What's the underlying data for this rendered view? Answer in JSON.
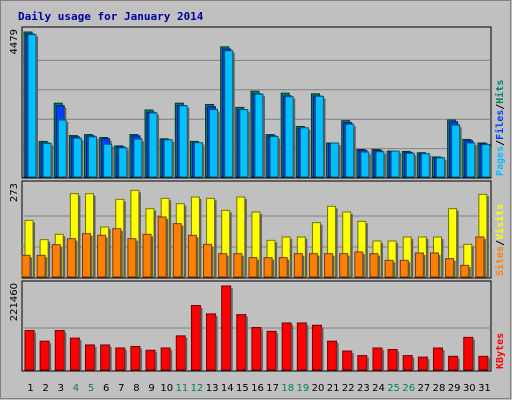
{
  "chart_data": {
    "type": "bar",
    "title": "Daily usage for January 2014",
    "days": [
      "1",
      "2",
      "3",
      "4",
      "5",
      "6",
      "7",
      "8",
      "9",
      "10",
      "11",
      "12",
      "13",
      "14",
      "15",
      "16",
      "17",
      "18",
      "19",
      "20",
      "21",
      "22",
      "23",
      "24",
      "25",
      "26",
      "27",
      "28",
      "29",
      "30",
      "31"
    ],
    "weekend_days": [
      "4",
      "5",
      "11",
      "12",
      "18",
      "19",
      "25",
      "26"
    ],
    "colors": {
      "title": "#0000a0",
      "hits": "#00806b",
      "files": "#0040ff",
      "pages": "#00c0ff",
      "visits": "#ffff00",
      "sites": "#ff8000",
      "kbytes": "#ff0000",
      "weekday_label": "#000000",
      "weekend_label": "#00805c",
      "grid": "#808080"
    },
    "panels": [
      {
        "id": "hits-files-pages",
        "ymax_label": "4479",
        "ymax": 4479,
        "series": [
          {
            "name": "Hits",
            "values": [
              4479,
              1100,
              2280,
              1280,
              1310,
              1220,
              960,
              1310,
              2070,
              1180,
              2280,
              1100,
              2240,
              4020,
              2150,
              2650,
              1310,
              2590,
              1560,
              2570,
              1050,
              1740,
              850,
              850,
              800,
              790,
              750,
              620,
              1760,
              1160,
              1050
            ]
          },
          {
            "name": "Files",
            "values": [
              4420,
              1050,
              2200,
              1240,
              1270,
              1180,
              930,
              1270,
              2000,
              1150,
              2210,
              1050,
              2170,
              3950,
              2080,
              2570,
              1270,
              2500,
              1500,
              2500,
              1020,
              1680,
              820,
              820,
              770,
              760,
              720,
              600,
              1700,
              1120,
              1020
            ]
          },
          {
            "name": "Pages",
            "values": [
              4400,
              1040,
              1760,
              1200,
              1240,
              1010,
              900,
              1170,
              1980,
              1150,
              2200,
              1060,
              2080,
              3900,
              2080,
              2560,
              1250,
              2480,
              1520,
              2490,
              1050,
              1630,
              770,
              780,
              800,
              730,
              720,
              590,
              1600,
              1050,
              1000
            ]
          }
        ],
        "side_labels": [
          {
            "text": "Pages",
            "color": "#00c0ff"
          },
          {
            "text": "/",
            "color": "#000000"
          },
          {
            "text": "Files",
            "color": "#0040ff"
          },
          {
            "text": "/",
            "color": "#000000"
          },
          {
            "text": "Hits",
            "color": "#00806b"
          }
        ]
      },
      {
        "id": "sites-visits",
        "ymax_label": "273",
        "ymax": 273,
        "series": [
          {
            "name": "Visits",
            "values": [
              170,
              112,
              128,
              250,
              250,
              150,
              233,
              260,
              205,
              236,
              220,
              240,
              236,
              200,
              240,
              195,
              110,
              120,
              120,
              163,
              212,
              195,
              167,
              108,
              108,
              120,
              120,
              120,
              205,
              98,
              248
            ]
          },
          {
            "name": "Sites",
            "values": [
              65,
              65,
              97,
              115,
              130,
              125,
              145,
              115,
              128,
              180,
              160,
              125,
              98,
              70,
              70,
              58,
              58,
              58,
              70,
              70,
              70,
              70,
              75,
              70,
              50,
              50,
              72,
              72,
              55,
              35,
              120
            ]
          }
        ],
        "side_labels": [
          {
            "text": "Sites",
            "color": "#ff8000"
          },
          {
            "text": "/",
            "color": "#000000"
          },
          {
            "text": "Visits",
            "color": "#ffff00"
          }
        ]
      },
      {
        "id": "kbytes",
        "ymax_label": "221460",
        "ymax": 221460,
        "series": [
          {
            "name": "KBytes",
            "values": [
              104000,
              76000,
              104000,
              84000,
              66000,
              66000,
              58000,
              62000,
              52000,
              58000,
              90000,
              170000,
              148000,
              221460,
              146000,
              112000,
              102000,
              124000,
              124000,
              118000,
              76000,
              50000,
              38000,
              58000,
              54000,
              38000,
              34000,
              58000,
              36000,
              86000,
              36000
            ]
          }
        ],
        "side_labels": [
          {
            "text": "KBytes",
            "color": "#ff0000"
          }
        ]
      }
    ]
  }
}
